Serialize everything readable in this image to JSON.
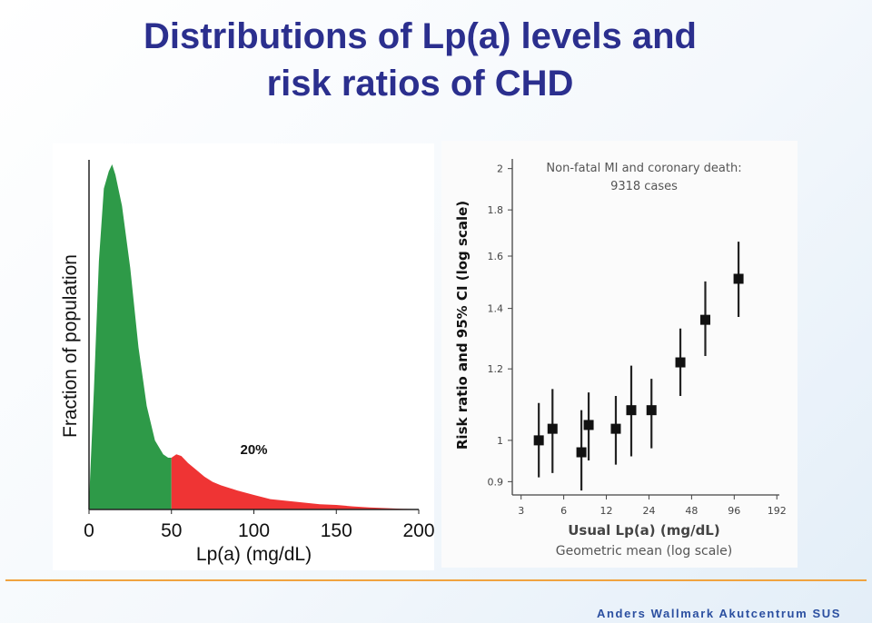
{
  "title": {
    "line1": "Distributions of Lp(a) levels and",
    "line2": "risk ratios of CHD"
  },
  "footer": {
    "author": "Anders Wallmark Akutcentrum SUS"
  },
  "colors": {
    "title": "#2b2f8e",
    "green": "#2e9a48",
    "red": "#ef3434",
    "footer_line": "#f0a340"
  },
  "chart_data": [
    {
      "type": "area",
      "title": "",
      "xlabel": "Lp(a) (mg/dL)",
      "ylabel": "Fraction of population",
      "xlim": [
        0,
        200
      ],
      "ylim": [
        0,
        1
      ],
      "xticks": [
        0,
        50,
        100,
        150,
        200
      ],
      "threshold": 50,
      "annotation": "20%",
      "series": [
        {
          "name": "distribution",
          "x": [
            0,
            3,
            6,
            9,
            12,
            14,
            16,
            20,
            25,
            30,
            35,
            40,
            45,
            48,
            50,
            53,
            56,
            60,
            65,
            70,
            75,
            80,
            90,
            100,
            110,
            120,
            130,
            140,
            150,
            160,
            170,
            180,
            190,
            200
          ],
          "y": [
            0.02,
            0.35,
            0.72,
            0.93,
            0.98,
            1.0,
            0.97,
            0.88,
            0.7,
            0.47,
            0.3,
            0.2,
            0.16,
            0.15,
            0.15,
            0.16,
            0.155,
            0.135,
            0.115,
            0.095,
            0.08,
            0.07,
            0.055,
            0.042,
            0.03,
            0.025,
            0.02,
            0.015,
            0.013,
            0.009,
            0.006,
            0.004,
            0.002,
            0.001
          ]
        }
      ]
    },
    {
      "type": "scatter",
      "title": "",
      "annotation": [
        "Non-fatal MI and coronary death:",
        "9318 cases"
      ],
      "xlabel": "Usual Lp(a) (mg/dL)",
      "xlabel2": "Geometric mean (log scale)",
      "ylabel": "Risk ratio and 95% CI (log scale)",
      "xscale": "log",
      "yscale": "log",
      "xlim": [
        2.6,
        200
      ],
      "ylim": [
        0.87,
        2.05
      ],
      "xticks": [
        3,
        6,
        12,
        24,
        48,
        96,
        192
      ],
      "yticks": [
        0.9,
        1,
        1.2,
        1.4,
        1.6,
        1.8,
        2
      ],
      "series": [
        {
          "name": "risk ratio",
          "points": [
            {
              "x": 4,
              "y": 1.0,
              "lo": 0.91,
              "hi": 1.1
            },
            {
              "x": 5,
              "y": 1.03,
              "lo": 0.92,
              "hi": 1.14
            },
            {
              "x": 8,
              "y": 0.97,
              "lo": 0.88,
              "hi": 1.08
            },
            {
              "x": 9,
              "y": 1.04,
              "lo": 0.95,
              "hi": 1.13
            },
            {
              "x": 14,
              "y": 1.03,
              "lo": 0.94,
              "hi": 1.12
            },
            {
              "x": 18,
              "y": 1.08,
              "lo": 0.96,
              "hi": 1.21
            },
            {
              "x": 25,
              "y": 1.08,
              "lo": 0.98,
              "hi": 1.17
            },
            {
              "x": 40,
              "y": 1.22,
              "lo": 1.12,
              "hi": 1.33
            },
            {
              "x": 60,
              "y": 1.36,
              "lo": 1.24,
              "hi": 1.5
            },
            {
              "x": 103,
              "y": 1.51,
              "lo": 1.37,
              "hi": 1.66
            }
          ]
        }
      ]
    }
  ]
}
